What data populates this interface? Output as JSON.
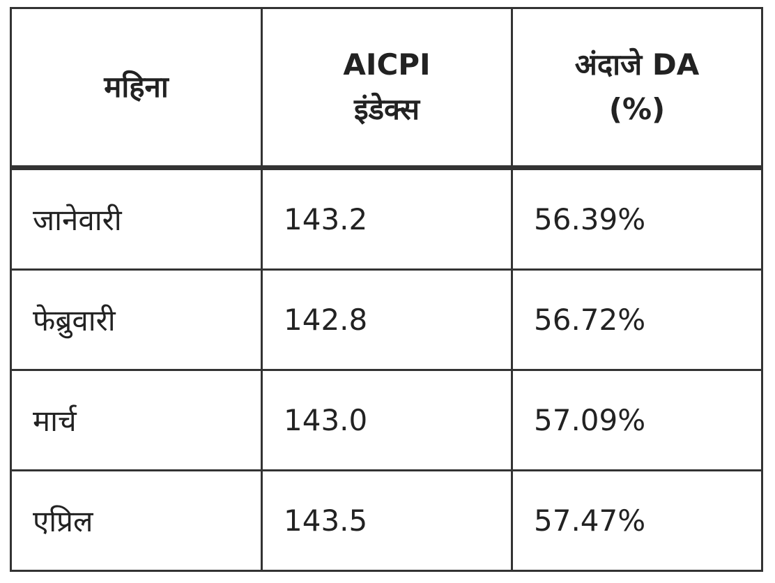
{
  "table": {
    "header": [
      "महिना",
      "AICPI इंडेक्स",
      "अंदाजे DA (%)"
    ],
    "rows": [
      [
        "जानेवारी",
        "143.2",
        "56.39%"
      ],
      [
        "फेब्रुवारी",
        "142.8",
        "56.72%"
      ],
      [
        "मार्च",
        "143.0",
        "57.09%"
      ],
      [
        "एप्रिल",
        "143.5",
        "57.47%"
      ]
    ]
  }
}
